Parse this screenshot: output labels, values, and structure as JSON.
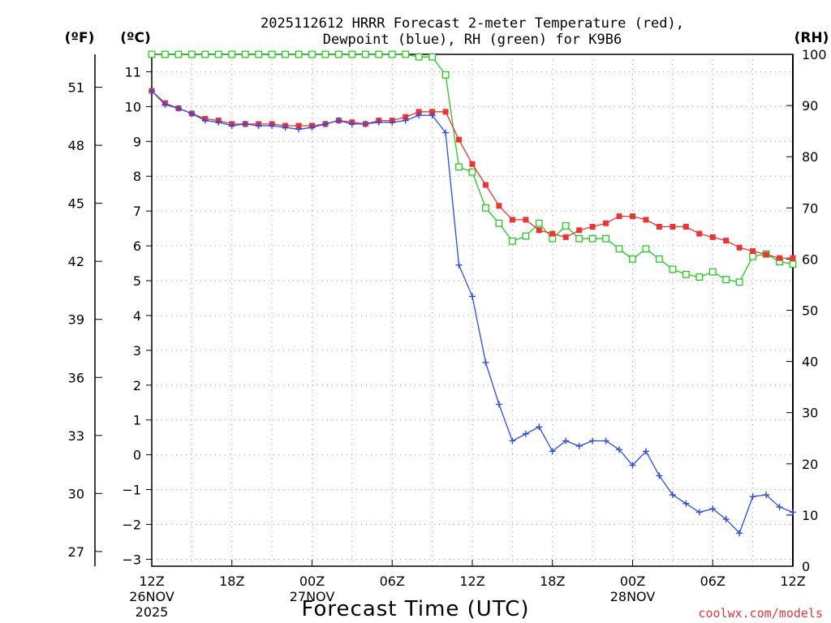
{
  "chart_data": {
    "type": "line",
    "title_line1": "2025112612 HRRR Forecast 2-meter Temperature (red),",
    "title_line2": "Dewpoint (blue), RH (green) for K9B6",
    "units": {
      "fahrenheit": "(ºF)",
      "celsius": "(ºC)",
      "rh": "(RH)"
    },
    "xlabel": "Forecast Time (UTC)",
    "credit": "coolwx.com/models",
    "x_ticks": [
      {
        "hour": 0,
        "label": "12Z",
        "date": "26NOV",
        "year": "2025"
      },
      {
        "hour": 6,
        "label": "18Z"
      },
      {
        "hour": 12,
        "label": "00Z",
        "date": "27NOV"
      },
      {
        "hour": 18,
        "label": "06Z"
      },
      {
        "hour": 24,
        "label": "12Z"
      },
      {
        "hour": 30,
        "label": "18Z"
      },
      {
        "hour": 36,
        "label": "00Z",
        "date": "28NOV"
      },
      {
        "hour": 42,
        "label": "06Z"
      },
      {
        "hour": 48,
        "label": "12Z"
      }
    ],
    "xlim": [
      0,
      48
    ],
    "y_celsius": {
      "ylim": [
        -3.2,
        11.5
      ],
      "ticks": [
        -3,
        -2,
        -1,
        0,
        1,
        2,
        3,
        4,
        5,
        6,
        7,
        8,
        9,
        10,
        11
      ]
    },
    "y_fahrenheit": {
      "ticks": [
        27,
        30,
        33,
        36,
        39,
        42,
        45,
        48,
        51
      ]
    },
    "y_rh": {
      "ylim": [
        0,
        100
      ],
      "ticks": [
        0,
        10,
        20,
        30,
        40,
        50,
        60,
        70,
        80,
        90,
        100
      ]
    },
    "colors": {
      "temperature": "#ee3333",
      "dewpoint": "#2d4be6",
      "rh": "#22cc22",
      "grid": "#a0a0a0"
    },
    "series": [
      {
        "name": "Temperature",
        "unit": "C",
        "marker": "filled-square",
        "values": [
          10.45,
          10.1,
          9.95,
          9.8,
          9.65,
          9.6,
          9.5,
          9.5,
          9.5,
          9.5,
          9.45,
          9.45,
          9.45,
          9.5,
          9.6,
          9.55,
          9.5,
          9.6,
          9.6,
          9.7,
          9.85,
          9.85,
          9.85,
          9.05,
          8.35,
          7.75,
          7.15,
          6.75,
          6.75,
          6.45,
          6.35,
          6.25,
          6.45,
          6.55,
          6.65,
          6.85,
          6.85,
          6.75,
          6.55,
          6.55,
          6.55,
          6.35,
          6.25,
          6.15,
          5.95,
          5.85,
          5.75,
          5.65,
          5.65
        ]
      },
      {
        "name": "Dewpoint",
        "unit": "C",
        "marker": "plus",
        "values": [
          10.45,
          10.05,
          9.95,
          9.8,
          9.6,
          9.55,
          9.45,
          9.5,
          9.45,
          9.45,
          9.4,
          9.35,
          9.4,
          9.5,
          9.6,
          9.5,
          9.5,
          9.55,
          9.55,
          9.6,
          9.75,
          9.75,
          9.25,
          5.45,
          4.55,
          2.65,
          1.45,
          0.4,
          0.6,
          0.8,
          0.1,
          0.4,
          0.25,
          0.4,
          0.4,
          0.15,
          -0.3,
          0.1,
          -0.6,
          -1.15,
          -1.4,
          -1.65,
          -1.55,
          -1.85,
          -2.25,
          -1.2,
          -1.15,
          -1.5,
          -1.65
        ]
      },
      {
        "name": "RH",
        "unit": "%",
        "marker": "open-square",
        "values": [
          100,
          100,
          100,
          100,
          100,
          100,
          100,
          100,
          100,
          100,
          100,
          100,
          100,
          100,
          100,
          100,
          100,
          100,
          100,
          100,
          99.5,
          99.5,
          96,
          78,
          77,
          70,
          67,
          63.5,
          64.5,
          67,
          64,
          66.5,
          64,
          64,
          64,
          62,
          60,
          62,
          60,
          58,
          57,
          56.5,
          57.5,
          56,
          55.5,
          60.5,
          61,
          59.5,
          59
        ]
      }
    ]
  }
}
